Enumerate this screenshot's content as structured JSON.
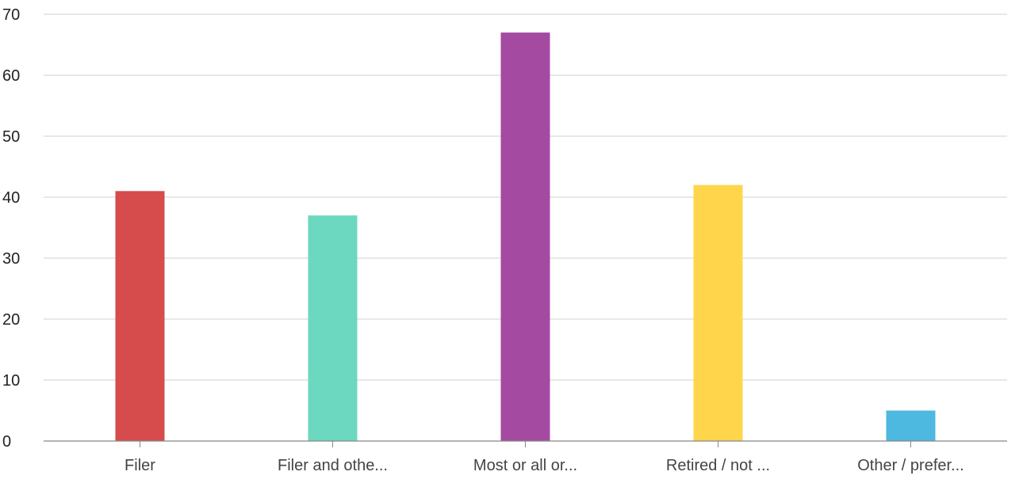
{
  "chart_data": {
    "type": "bar",
    "title": "",
    "xlabel": "",
    "ylabel": "",
    "categories": [
      "Filer",
      "Filer and othe...",
      "Most or all or...",
      "Retired / not ...",
      "Other / prefer..."
    ],
    "values": [
      41,
      37,
      67,
      42,
      5
    ],
    "colors": [
      "#d64b4b",
      "#6bd8bf",
      "#a44ba1",
      "#ffd54c",
      "#4db8e0"
    ],
    "ylim": [
      0,
      70
    ],
    "yticks": [
      0,
      10,
      20,
      30,
      40,
      50,
      60,
      70
    ],
    "grid": true,
    "legend": "none"
  }
}
